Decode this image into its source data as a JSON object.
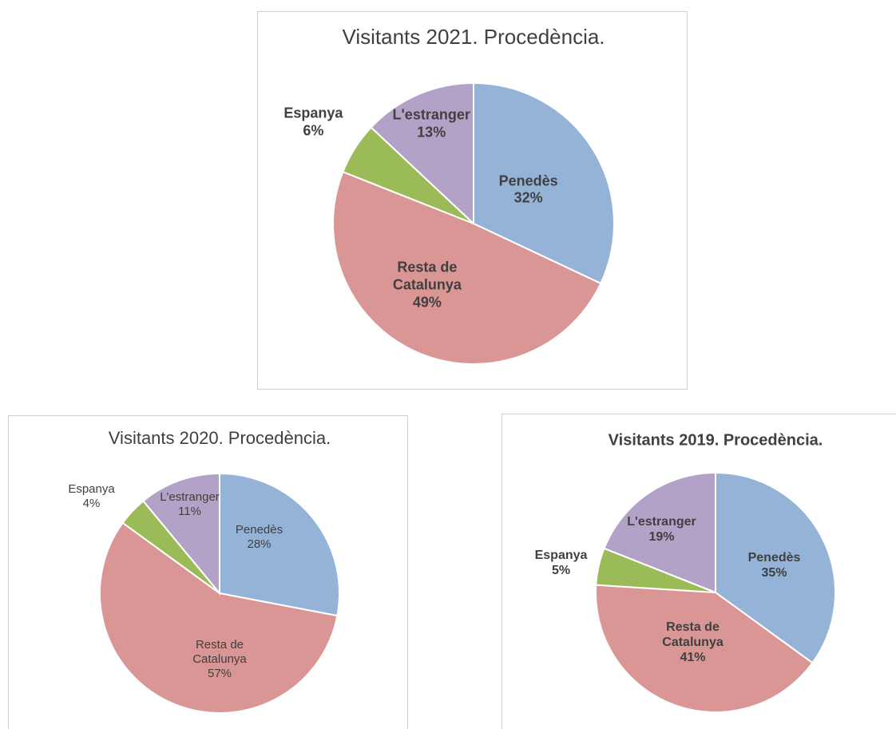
{
  "chart_data": [
    {
      "type": "pie",
      "title": "Visitants 2021. Procedència.",
      "categories": [
        "Penedès",
        "Resta de Catalunya",
        "Espanya",
        "L'estranger"
      ],
      "values": [
        32,
        49,
        6,
        13
      ],
      "value_labels": [
        "32%",
        "49%",
        "6%",
        "13%"
      ],
      "colors": [
        "#95b3d7",
        "#d99694",
        "#9bbb59",
        "#b3a2c7"
      ]
    },
    {
      "type": "pie",
      "title": "Visitants 2020. Procedència.",
      "categories": [
        "Penedès",
        "Resta de Catalunya",
        "Espanya",
        "L'estranger"
      ],
      "values": [
        28,
        57,
        4,
        11
      ],
      "value_labels": [
        "28%",
        "57%",
        "4%",
        "11%"
      ],
      "colors": [
        "#95b3d7",
        "#d99694",
        "#9bbb59",
        "#b3a2c7"
      ]
    },
    {
      "type": "pie",
      "title": "Visitants 2019. Procedència.",
      "categories": [
        "Penedès",
        "Resta de Catalunya",
        "Espanya",
        "L'estranger"
      ],
      "values": [
        35,
        41,
        5,
        19
      ],
      "value_labels": [
        "35%",
        "41%",
        "5%",
        "19%"
      ],
      "colors": [
        "#95b3d7",
        "#d99694",
        "#9bbb59",
        "#b3a2c7"
      ]
    }
  ]
}
